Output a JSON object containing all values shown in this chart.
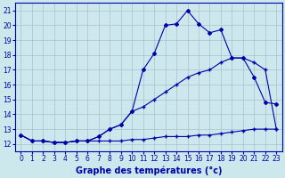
{
  "title": "Graphe des températures (°c)",
  "background_color": "#cce8ec",
  "grid_color": "#aac0cc",
  "line_color": "#0000aa",
  "xlim": [
    -0.5,
    23.5
  ],
  "ylim": [
    11.5,
    21.5
  ],
  "yticks": [
    12,
    13,
    14,
    15,
    16,
    17,
    18,
    19,
    20,
    21
  ],
  "xticks": [
    0,
    1,
    2,
    3,
    4,
    5,
    6,
    7,
    8,
    9,
    10,
    11,
    12,
    13,
    14,
    15,
    16,
    17,
    18,
    19,
    20,
    21,
    22,
    23
  ],
  "temp_curve_x": [
    0,
    1,
    2,
    3,
    4,
    5,
    6,
    7,
    8,
    9,
    10,
    11,
    12,
    13,
    14,
    15,
    16,
    17,
    18,
    19,
    20,
    21,
    22,
    23
  ],
  "temp_curve_y": [
    12.6,
    12.2,
    12.2,
    12.1,
    12.1,
    12.2,
    12.2,
    12.5,
    13.0,
    13.3,
    14.2,
    17.0,
    18.1,
    20.0,
    20.1,
    21.0,
    20.1,
    19.5,
    19.7,
    17.8,
    17.8,
    16.5,
    14.8,
    14.7
  ],
  "min_curve_x": [
    0,
    1,
    2,
    3,
    4,
    5,
    6,
    7,
    8,
    9,
    10,
    11,
    12,
    13,
    14,
    15,
    16,
    17,
    18,
    19,
    20,
    21,
    22,
    23
  ],
  "min_curve_y": [
    12.6,
    12.2,
    12.2,
    12.1,
    12.1,
    12.2,
    12.2,
    12.2,
    12.2,
    12.2,
    12.3,
    12.3,
    12.4,
    12.5,
    12.5,
    12.5,
    12.6,
    12.6,
    12.7,
    12.8,
    12.9,
    13.0,
    13.0,
    13.0
  ],
  "max_curve_x": [
    0,
    1,
    2,
    3,
    4,
    5,
    6,
    7,
    8,
    9,
    10,
    11,
    12,
    13,
    14,
    15,
    16,
    17,
    18,
    19,
    20,
    21,
    22,
    23
  ],
  "max_curve_y": [
    12.6,
    12.2,
    12.2,
    12.1,
    12.1,
    12.2,
    12.2,
    12.5,
    13.0,
    13.3,
    14.2,
    14.5,
    15.0,
    15.5,
    16.0,
    16.5,
    16.8,
    17.0,
    17.5,
    17.8,
    17.8,
    17.5,
    17.0,
    13.0
  ],
  "xlabel_fontsize": 7,
  "tick_fontsize": 5.5
}
